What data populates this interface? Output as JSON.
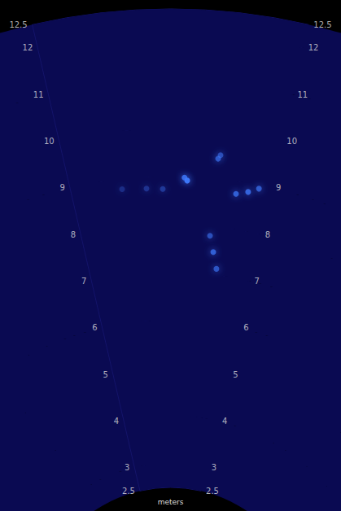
{
  "chart_data": {
    "type": "sonar",
    "ylabel": "meters",
    "ylim": [
      2.5,
      12.5
    ],
    "yticks": [
      2.5,
      3,
      4,
      5,
      6,
      7,
      8,
      9,
      10,
      11,
      12,
      12.5
    ],
    "xlim": [
      -13,
      13
    ],
    "tick_labels": "y",
    "grid": true,
    "marker": "circle",
    "color": "#3f7bff",
    "points": {
      "range": [
        8.92,
        8.98,
        9.42,
        9.5,
        8.74,
        8.82,
        8.93,
        7.8,
        7.47,
        7.13,
        8.79,
        8.76,
        8.74
      ],
      "bearing": [
        2.16,
        1.8,
        5.85,
        6.1,
        8.67,
        10.2,
        11.5,
        5.82,
        6.57,
        7.38,
        -6.36,
        -3.16,
        -1.02
      ],
      "intensity": [
        0.95,
        0.8,
        0.6,
        0.5,
        0.7,
        0.75,
        0.65,
        0.55,
        0.7,
        0.6,
        0.25,
        0.3,
        0.35
      ]
    }
  }
}
